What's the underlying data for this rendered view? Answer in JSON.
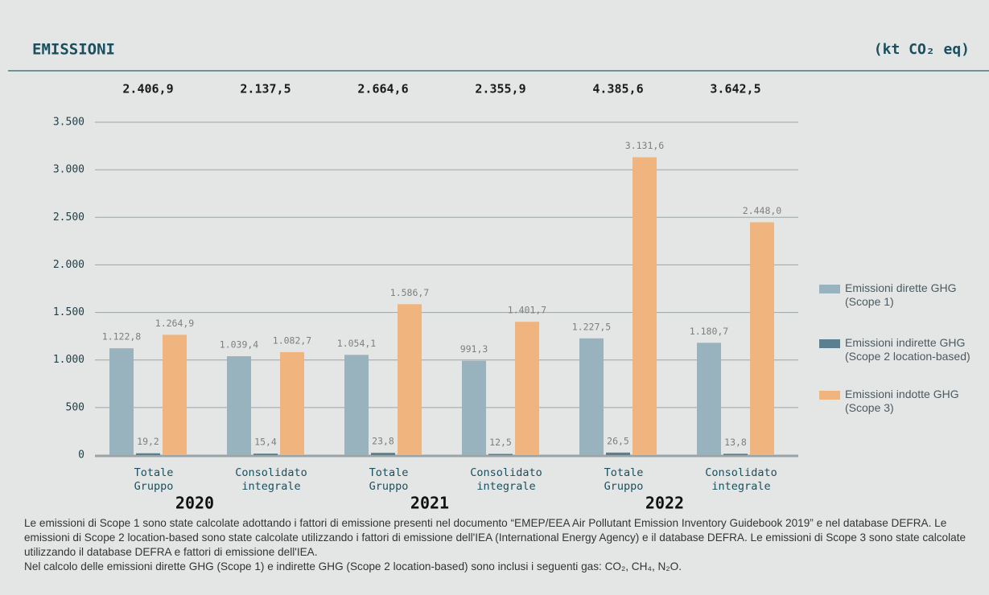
{
  "chart_data": {
    "type": "bar",
    "title": "EMISSIONI",
    "unit": "(kt CO₂ eq)",
    "categories": [
      [
        "Totale",
        "Gruppo"
      ],
      [
        "Consolidato",
        "integrale"
      ],
      [
        "Totale",
        "Gruppo"
      ],
      [
        "Consolidato",
        "integrale"
      ],
      [
        "Totale",
        "Gruppo"
      ],
      [
        "Consolidato",
        "integrale"
      ]
    ],
    "groups": [
      "2020",
      "2021",
      "2022"
    ],
    "totals": [
      2406.9,
      2137.5,
      2664.6,
      2355.9,
      4385.6,
      3642.5
    ],
    "total_labels": [
      "2.406,9",
      "2.137,5",
      "2.664,6",
      "2.355,9",
      "4.385,6",
      "3.642,5"
    ],
    "series": [
      {
        "name": "Emissioni dirette GHG (Scope 1)",
        "color": "#98b3bd",
        "values": [
          1122.8,
          1039.4,
          1054.1,
          991.3,
          1227.5,
          1180.7
        ],
        "value_labels": [
          "1.122,8",
          "1.039,4",
          "1.054,1",
          "991,3",
          "1.227,5",
          "1.180,7"
        ]
      },
      {
        "name": "Emissioni indirette GHG (Scope 2 location-based)",
        "color": "#5a7f8e",
        "values": [
          19.2,
          15.4,
          23.8,
          12.5,
          26.5,
          13.8
        ],
        "value_labels": [
          "19,2",
          "15,4",
          "23,8",
          "12,5",
          "26,5",
          "13,8"
        ]
      },
      {
        "name": "Emissioni indotte GHG (Scope 3)",
        "color": "#f0b47e",
        "values": [
          1264.9,
          1082.7,
          1586.7,
          1401.7,
          3131.6,
          2448.0
        ],
        "value_labels": [
          "1.264,9",
          "1.082,7",
          "1.586,7",
          "1.401,7",
          "3.131,6",
          "2.448,0"
        ]
      }
    ],
    "ylim": [
      0,
      3500
    ],
    "yticks": [
      0,
      500,
      {
        "value": 1000,
        "label": "1.000"
      },
      {
        "value": 1500,
        "label": "1.500"
      },
      {
        "value": 2000,
        "label": "2.000"
      },
      {
        "value": 2500,
        "label": "2.500"
      },
      {
        "value": 3000,
        "label": "3.000"
      },
      {
        "value": 3500,
        "label": "3.500"
      }
    ],
    "grid": true,
    "notes": [
      "Le emissioni di Scope 1 sono state calcolate adottando i fattori di emissione presenti nel documento “EMEP/EEA Air Pollutant Emission Inventory Guidebook 2019” e nel database DEFRA. Le emissioni di Scope 2 location-based sono state calcolate utilizzando i fattori di emissione dell'IEA (International Energy Agency) e il database DEFRA. Le emissioni di Scope 3 sono state calcolate utilizzando il database DEFRA e fattori di emissione dell'IEA.",
      "Nel calcolo delle emissioni dirette GHG (Scope 1) e indirette GHG (Scope 2 location-based) sono inclusi i seguenti gas: CO₂, CH₄, N₂O."
    ]
  }
}
